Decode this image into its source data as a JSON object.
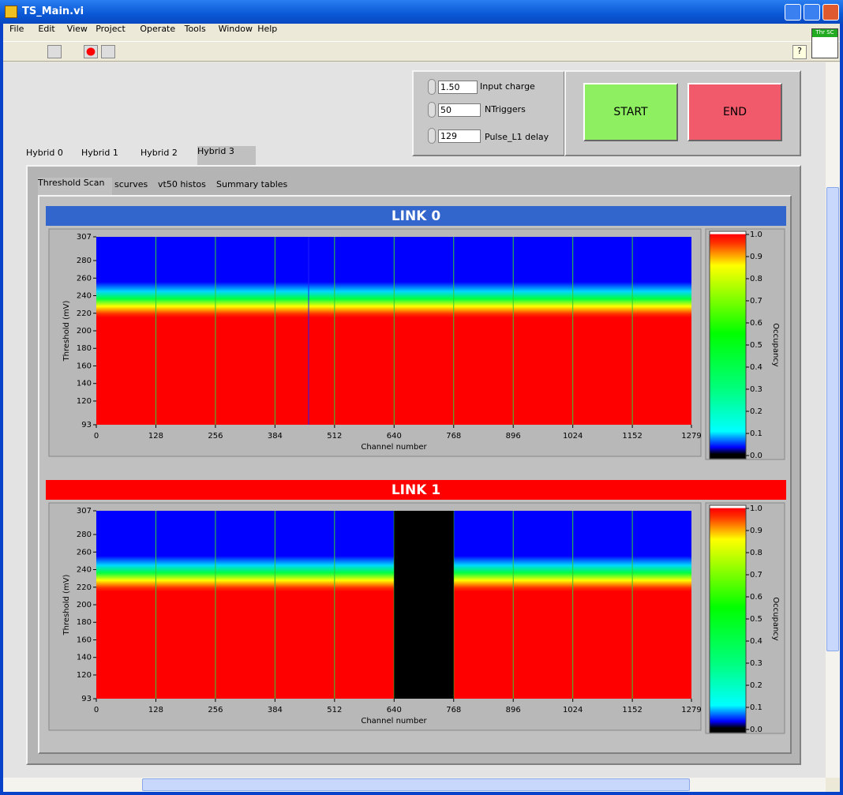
{
  "window": {
    "title": "TS_Main.vi"
  },
  "menu": [
    "File",
    "Edit",
    "View",
    "Project",
    "Operate",
    "Tools",
    "Window",
    "Help"
  ],
  "icon_label": "Thr SC",
  "controls": [
    {
      "value": "1.50",
      "label": "Input charge"
    },
    {
      "value": "50",
      "label": "NTriggers"
    },
    {
      "value": "129",
      "label": "Pulse_L1 delay"
    }
  ],
  "buttons": [
    "START",
    "END"
  ],
  "hybrid_tabs": [
    "Hybrid 0",
    "Hybrid 1",
    "Hybrid 2",
    "Hybrid 3"
  ],
  "sub_tabs": [
    "Threshold Scan",
    "scurves",
    "vt50 histos",
    "Summary tables"
  ],
  "graphs": [
    {
      "title": "LINK 0",
      "banner_color": "#3366cc",
      "x_label": "Channel number",
      "y_label": "Threshold (mV)",
      "z_label": "Occupancy",
      "xlim": [
        0,
        1279
      ],
      "xticks": [
        0,
        128,
        256,
        384,
        512,
        640,
        768,
        896,
        1024,
        1152,
        1279
      ],
      "ylim": [
        93,
        307
      ],
      "yticks": [
        93,
        120,
        140,
        160,
        180,
        200,
        220,
        240,
        260,
        280,
        307
      ],
      "zlim": [
        0,
        1
      ],
      "zticks": [
        {
          "value": 0,
          "label": "0.0"
        },
        {
          "value": 0.1,
          "label": "0.1"
        },
        {
          "value": 0.2,
          "label": "0.2"
        },
        {
          "value": 0.3,
          "label": "0.3"
        },
        {
          "value": 0.4,
          "label": "0.4"
        },
        {
          "value": 0.5,
          "label": "0.5"
        },
        {
          "value": 0.6,
          "label": "0.6"
        },
        {
          "value": 0.7,
          "label": "0.7"
        },
        {
          "value": 0.8,
          "label": "0.8"
        },
        {
          "value": 0.9,
          "label": "0.9"
        },
        {
          "value": 1,
          "label": "1.0"
        }
      ]
    },
    {
      "title": "LINK 1",
      "banner_color": "#ff0000",
      "x_label": "Channel number",
      "y_label": "Threshold (mV)",
      "z_label": "Occupancy",
      "xlim": [
        0,
        1279
      ],
      "xticks": [
        0,
        128,
        256,
        384,
        512,
        640,
        768,
        896,
        1024,
        1152,
        1279
      ],
      "ylim": [
        93,
        307
      ],
      "yticks": [
        93,
        120,
        140,
        160,
        180,
        200,
        220,
        240,
        260,
        280,
        307
      ],
      "zlim": [
        0,
        1
      ],
      "zticks": [
        {
          "value": 0,
          "label": "0.0"
        },
        {
          "value": 0.1,
          "label": "0.1"
        },
        {
          "value": 0.2,
          "label": "0.2"
        },
        {
          "value": 0.3,
          "label": "0.3"
        },
        {
          "value": 0.4,
          "label": "0.4"
        },
        {
          "value": 0.5,
          "label": "0.5"
        },
        {
          "value": 0.6,
          "label": "0.6"
        },
        {
          "value": 0.7,
          "label": "0.7"
        },
        {
          "value": 0.8,
          "label": "0.8"
        },
        {
          "value": 0.9,
          "label": "0.9"
        },
        {
          "value": 1,
          "label": "1.0"
        }
      ]
    }
  ]
}
